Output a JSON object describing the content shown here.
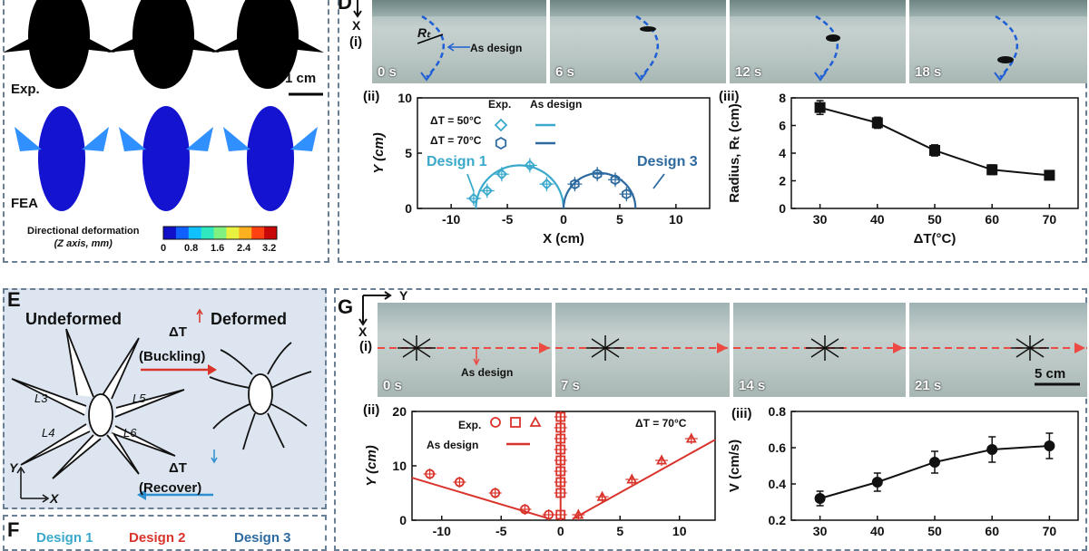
{
  "panels": {
    "top_left": {
      "exp_label": "Exp.",
      "fea_label": "FEA",
      "scale_bar": "1 cm",
      "colorbar_title_1": "Directional deformation",
      "colorbar_title_2": "(Z axis, mm)",
      "colorbar_ticks": [
        "0",
        "0.8",
        "1.6",
        "2.4",
        "3.2"
      ],
      "colorbar_colors": [
        "#1010c8",
        "#1060ff",
        "#10c0ff",
        "#30e8c0",
        "#80f080",
        "#e8f040",
        "#ffb020",
        "#ff4010",
        "#c80808"
      ]
    },
    "D": {
      "letter": "D",
      "axis_x": "X",
      "sub_i": "(i)",
      "photo_times": [
        "0 s",
        "6 s",
        "12 s",
        "18 s"
      ],
      "rt_label": "Rₜ",
      "as_design": "As design",
      "sub_ii": "(ii)",
      "sub_iii": "(iii)",
      "legend_exp": "Exp.",
      "legend_design": "As design",
      "legend_row1": "ΔT = 50°C",
      "legend_row2": "ΔT = 70°C",
      "design1": "Design 1",
      "design3": "Design 3",
      "ii_xlabel": "X (cm)",
      "ii_ylabel": "Y (cm)",
      "iii_xlabel": "ΔT(°C)",
      "iii_ylabel": "Radius, Rₜ (cm)"
    },
    "E": {
      "letter": "E",
      "undeformed": "Undeformed",
      "deformed": "Deformed",
      "dt_up": "ΔT",
      "buckling": "(Buckling)",
      "dt_down": "ΔT",
      "recover": "(Recover)",
      "L3": "L3",
      "L4": "L4",
      "L5": "L5",
      "L6": "L6",
      "axis_y": "Y",
      "axis_x": "X"
    },
    "F": {
      "letter": "F",
      "design1": "Design 1",
      "design2": "Design 2",
      "design3": "Design 3"
    },
    "G": {
      "letter": "G",
      "axis_y": "Y",
      "axis_x": "X",
      "sub_i": "(i)",
      "photo_times": [
        "0 s",
        "7 s",
        "14 s",
        "21 s"
      ],
      "as_design": "As design",
      "scale_bar": "5 cm",
      "sub_ii": "(ii)",
      "sub_iii": "(iii)",
      "legend_exp": "Exp.",
      "legend_design": "As design",
      "dt_label": "ΔT = 70°C",
      "ii_ylabel": "Y (cm)",
      "iii_ylabel": "V (cm/s)"
    }
  },
  "chart_data": [
    {
      "id": "D-ii",
      "type": "scatter",
      "xlabel": "X (cm)",
      "ylabel": "Y (cm)",
      "xlim": [
        -13,
        13
      ],
      "ylim": [
        0,
        10
      ],
      "xticks": [
        -10,
        -5,
        0,
        5,
        10
      ],
      "yticks": [
        0,
        5,
        10
      ],
      "series": [
        {
          "name": "ΔT = 50°C",
          "color": "#3aa9cc",
          "marker": "diamond",
          "x": [
            -8,
            -6.8,
            -5.5,
            -3,
            -1.5
          ],
          "y": [
            0.9,
            1.6,
            3.1,
            3.9,
            2.2
          ]
        },
        {
          "name": "ΔT = 70°C",
          "color": "#2d6aa0",
          "marker": "hexagon",
          "x": [
            1,
            3,
            4.6,
            5.6
          ],
          "y": [
            2.2,
            3.1,
            2.6,
            1.3
          ]
        }
      ],
      "design_curves": [
        {
          "name": "ΔT = 50°C",
          "color": "#3aa9cc",
          "cx": -3.9,
          "r": 3.9
        },
        {
          "name": "ΔT = 70°C",
          "color": "#2d6aa0",
          "cx": 3.2,
          "r": 3.2
        }
      ]
    },
    {
      "id": "D-iii",
      "type": "line",
      "xlabel": "ΔT(°C)",
      "ylabel": "Radius, Rₜ (cm)",
      "xlim": [
        25,
        75
      ],
      "ylim": [
        0,
        8
      ],
      "xticks": [
        30,
        40,
        50,
        60,
        70
      ],
      "yticks": [
        0,
        2,
        4,
        6,
        8
      ],
      "x": [
        30,
        40,
        50,
        60,
        70
      ],
      "y": [
        7.3,
        6.2,
        4.2,
        2.8,
        2.4
      ],
      "err": [
        0.5,
        0.4,
        0.4,
        0.35,
        0.3
      ]
    },
    {
      "id": "G-ii",
      "type": "scatter",
      "ylabel": "Y (cm)",
      "dt_label": "ΔT = 70°C",
      "xlim": [
        -12.5,
        13
      ],
      "ylim": [
        0,
        20
      ],
      "xticks": [
        -10,
        -5,
        0,
        5,
        10
      ],
      "yticks": [
        0,
        10,
        20
      ],
      "series": [
        {
          "marker": "circle",
          "color": "#d9342b",
          "x": [
            -11,
            -8.5,
            -5.5,
            -3,
            -1
          ],
          "y": [
            8.5,
            7,
            5,
            2,
            1
          ]
        },
        {
          "marker": "square",
          "color": "#d9342b",
          "x": [
            0,
            0,
            0,
            0,
            0,
            0,
            0,
            0,
            0
          ],
          "y": [
            1,
            5,
            7,
            9,
            11,
            13,
            15,
            17,
            19
          ]
        },
        {
          "marker": "triangle",
          "color": "#d9342b",
          "x": [
            1.5,
            3.5,
            6,
            8.5,
            11
          ],
          "y": [
            1,
            4.3,
            7.5,
            11,
            15
          ]
        }
      ]
    },
    {
      "id": "G-iii",
      "type": "line",
      "ylabel": "V (cm/s)",
      "xlim": [
        25,
        75
      ],
      "ylim": [
        0.2,
        0.8
      ],
      "xticks": [
        30,
        40,
        50,
        60,
        70
      ],
      "yticks": [
        0.2,
        0.4,
        0.6,
        0.8
      ],
      "x": [
        30,
        40,
        50,
        60,
        70
      ],
      "y": [
        0.32,
        0.41,
        0.52,
        0.59,
        0.61
      ],
      "err": [
        0.04,
        0.05,
        0.06,
        0.07,
        0.07
      ]
    }
  ]
}
